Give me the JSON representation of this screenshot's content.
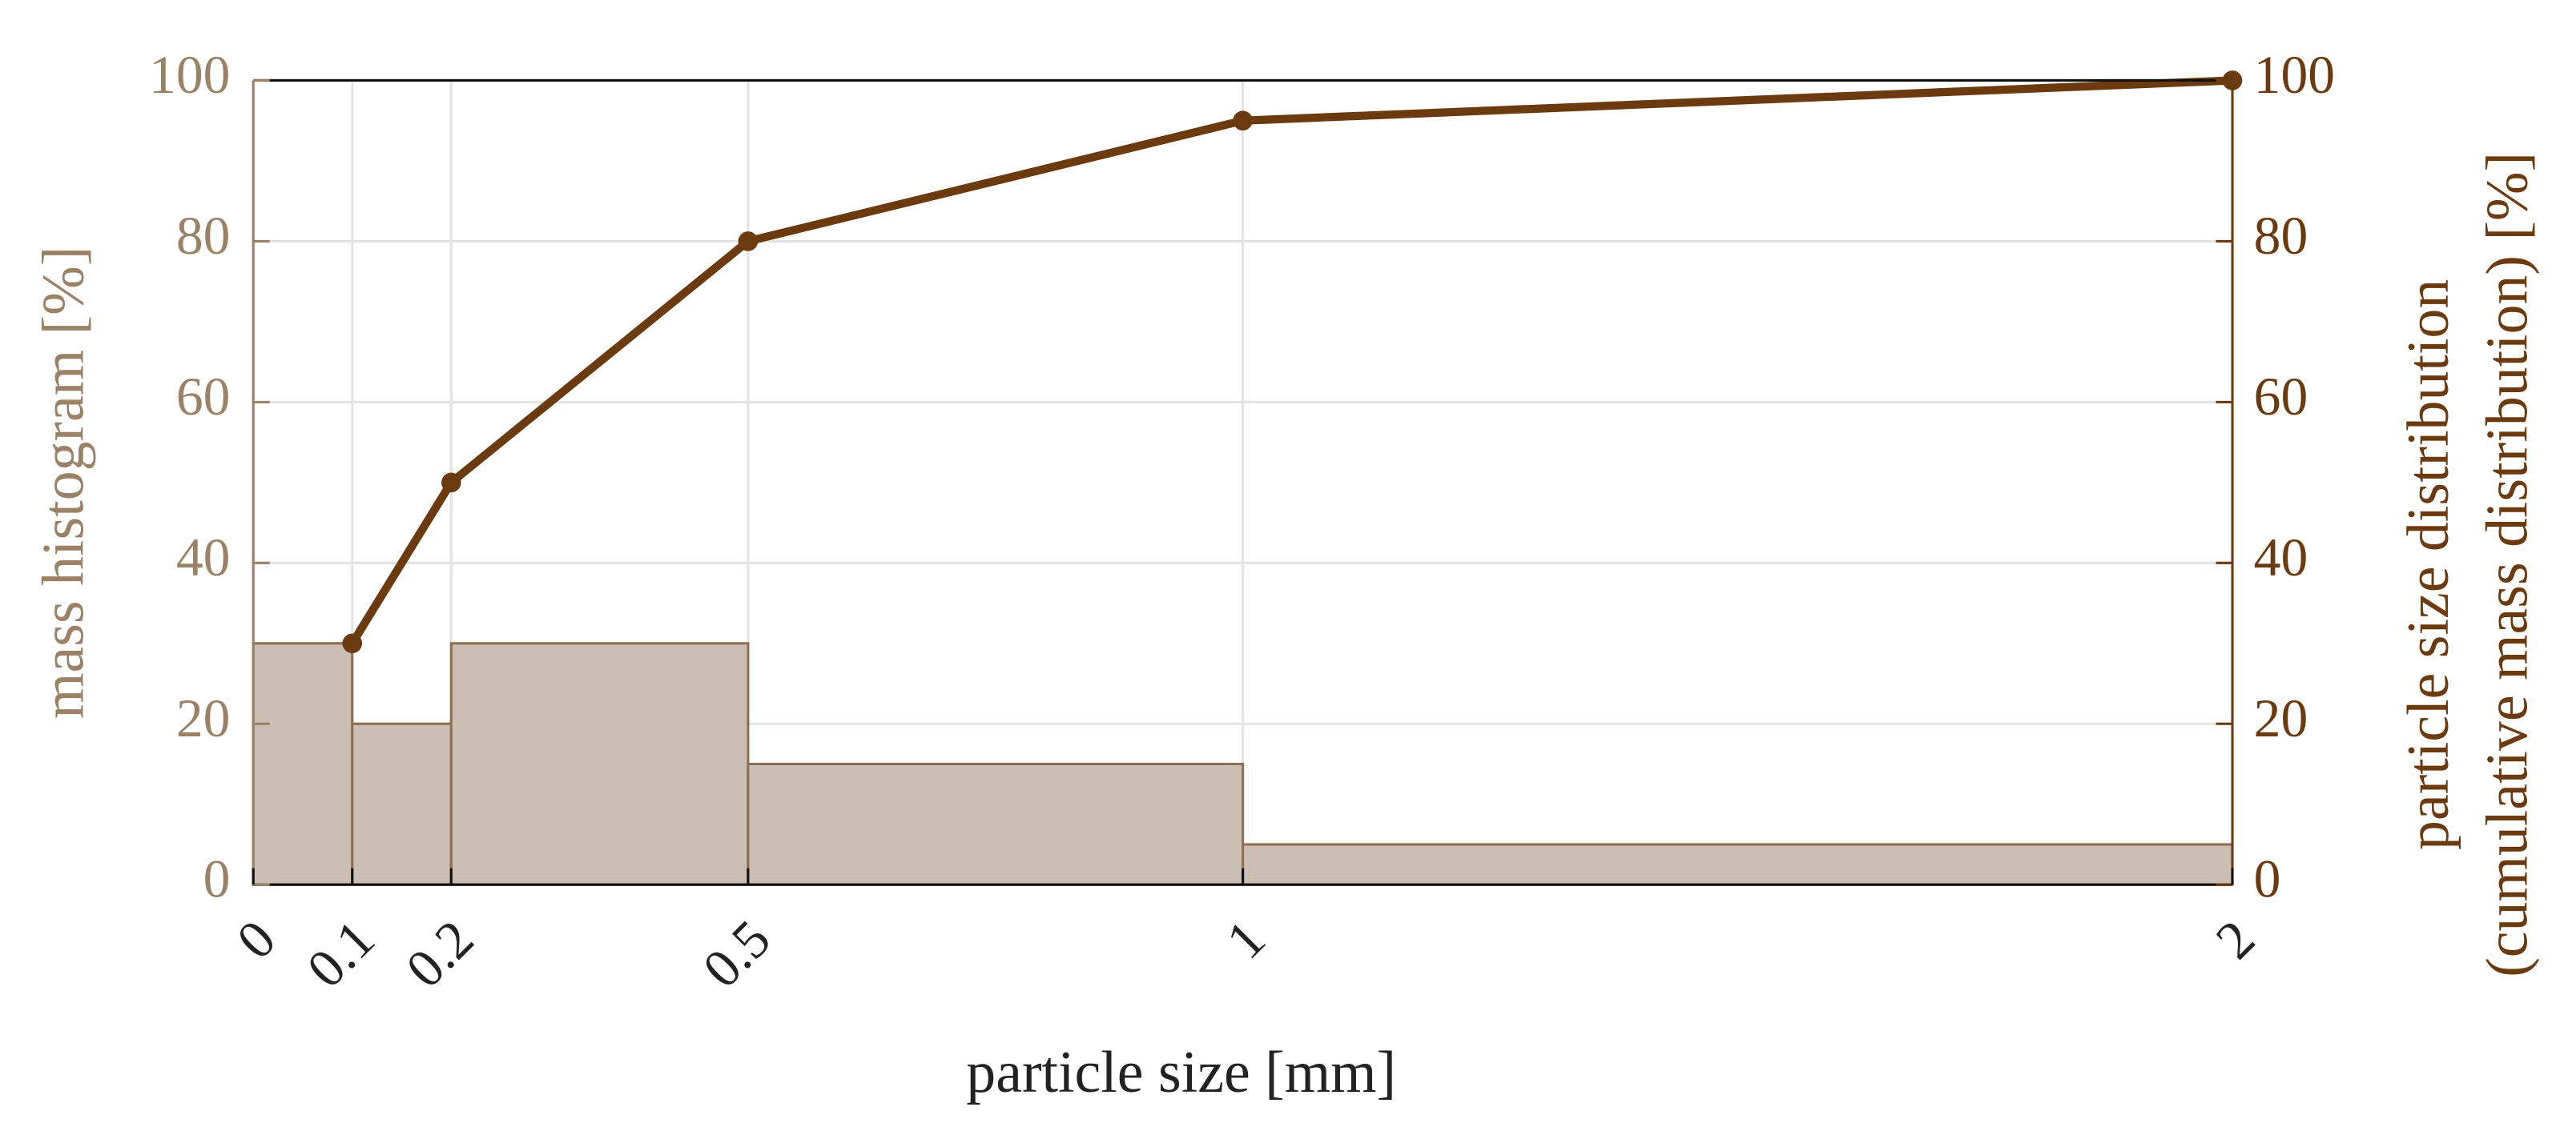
{
  "chart_data": [
    {
      "type": "histogram",
      "xlabel": "particle size [mm]",
      "ylabel": "mass histogram [%]",
      "bins": [
        0,
        0.1,
        0.2,
        0.5,
        1,
        2
      ],
      "values": [
        30,
        20,
        30,
        15,
        5
      ],
      "color": "#cbbfb3",
      "edgecolor": "#8c6f50",
      "labelcolor": "#9b8166",
      "xlim": [
        0,
        2
      ],
      "xticks": [
        0,
        0.1,
        0.2,
        0.5,
        1,
        2
      ],
      "ylim": [
        0,
        100
      ],
      "yticks": [
        0,
        20,
        40,
        60,
        80,
        100
      ],
      "grid": true
    },
    {
      "type": "line",
      "axis": "y2",
      "ylabel": [
        "particle size distribution",
        "(cumulative mass distribution) [%]"
      ],
      "x": [
        0.1,
        0.2,
        0.5,
        1,
        2
      ],
      "values": [
        30,
        50,
        80,
        95,
        100
      ],
      "color": "#6b3a0f",
      "y2lim": [
        0,
        100
      ],
      "y2ticks": [
        0,
        20,
        40,
        60,
        80,
        100
      ]
    }
  ]
}
